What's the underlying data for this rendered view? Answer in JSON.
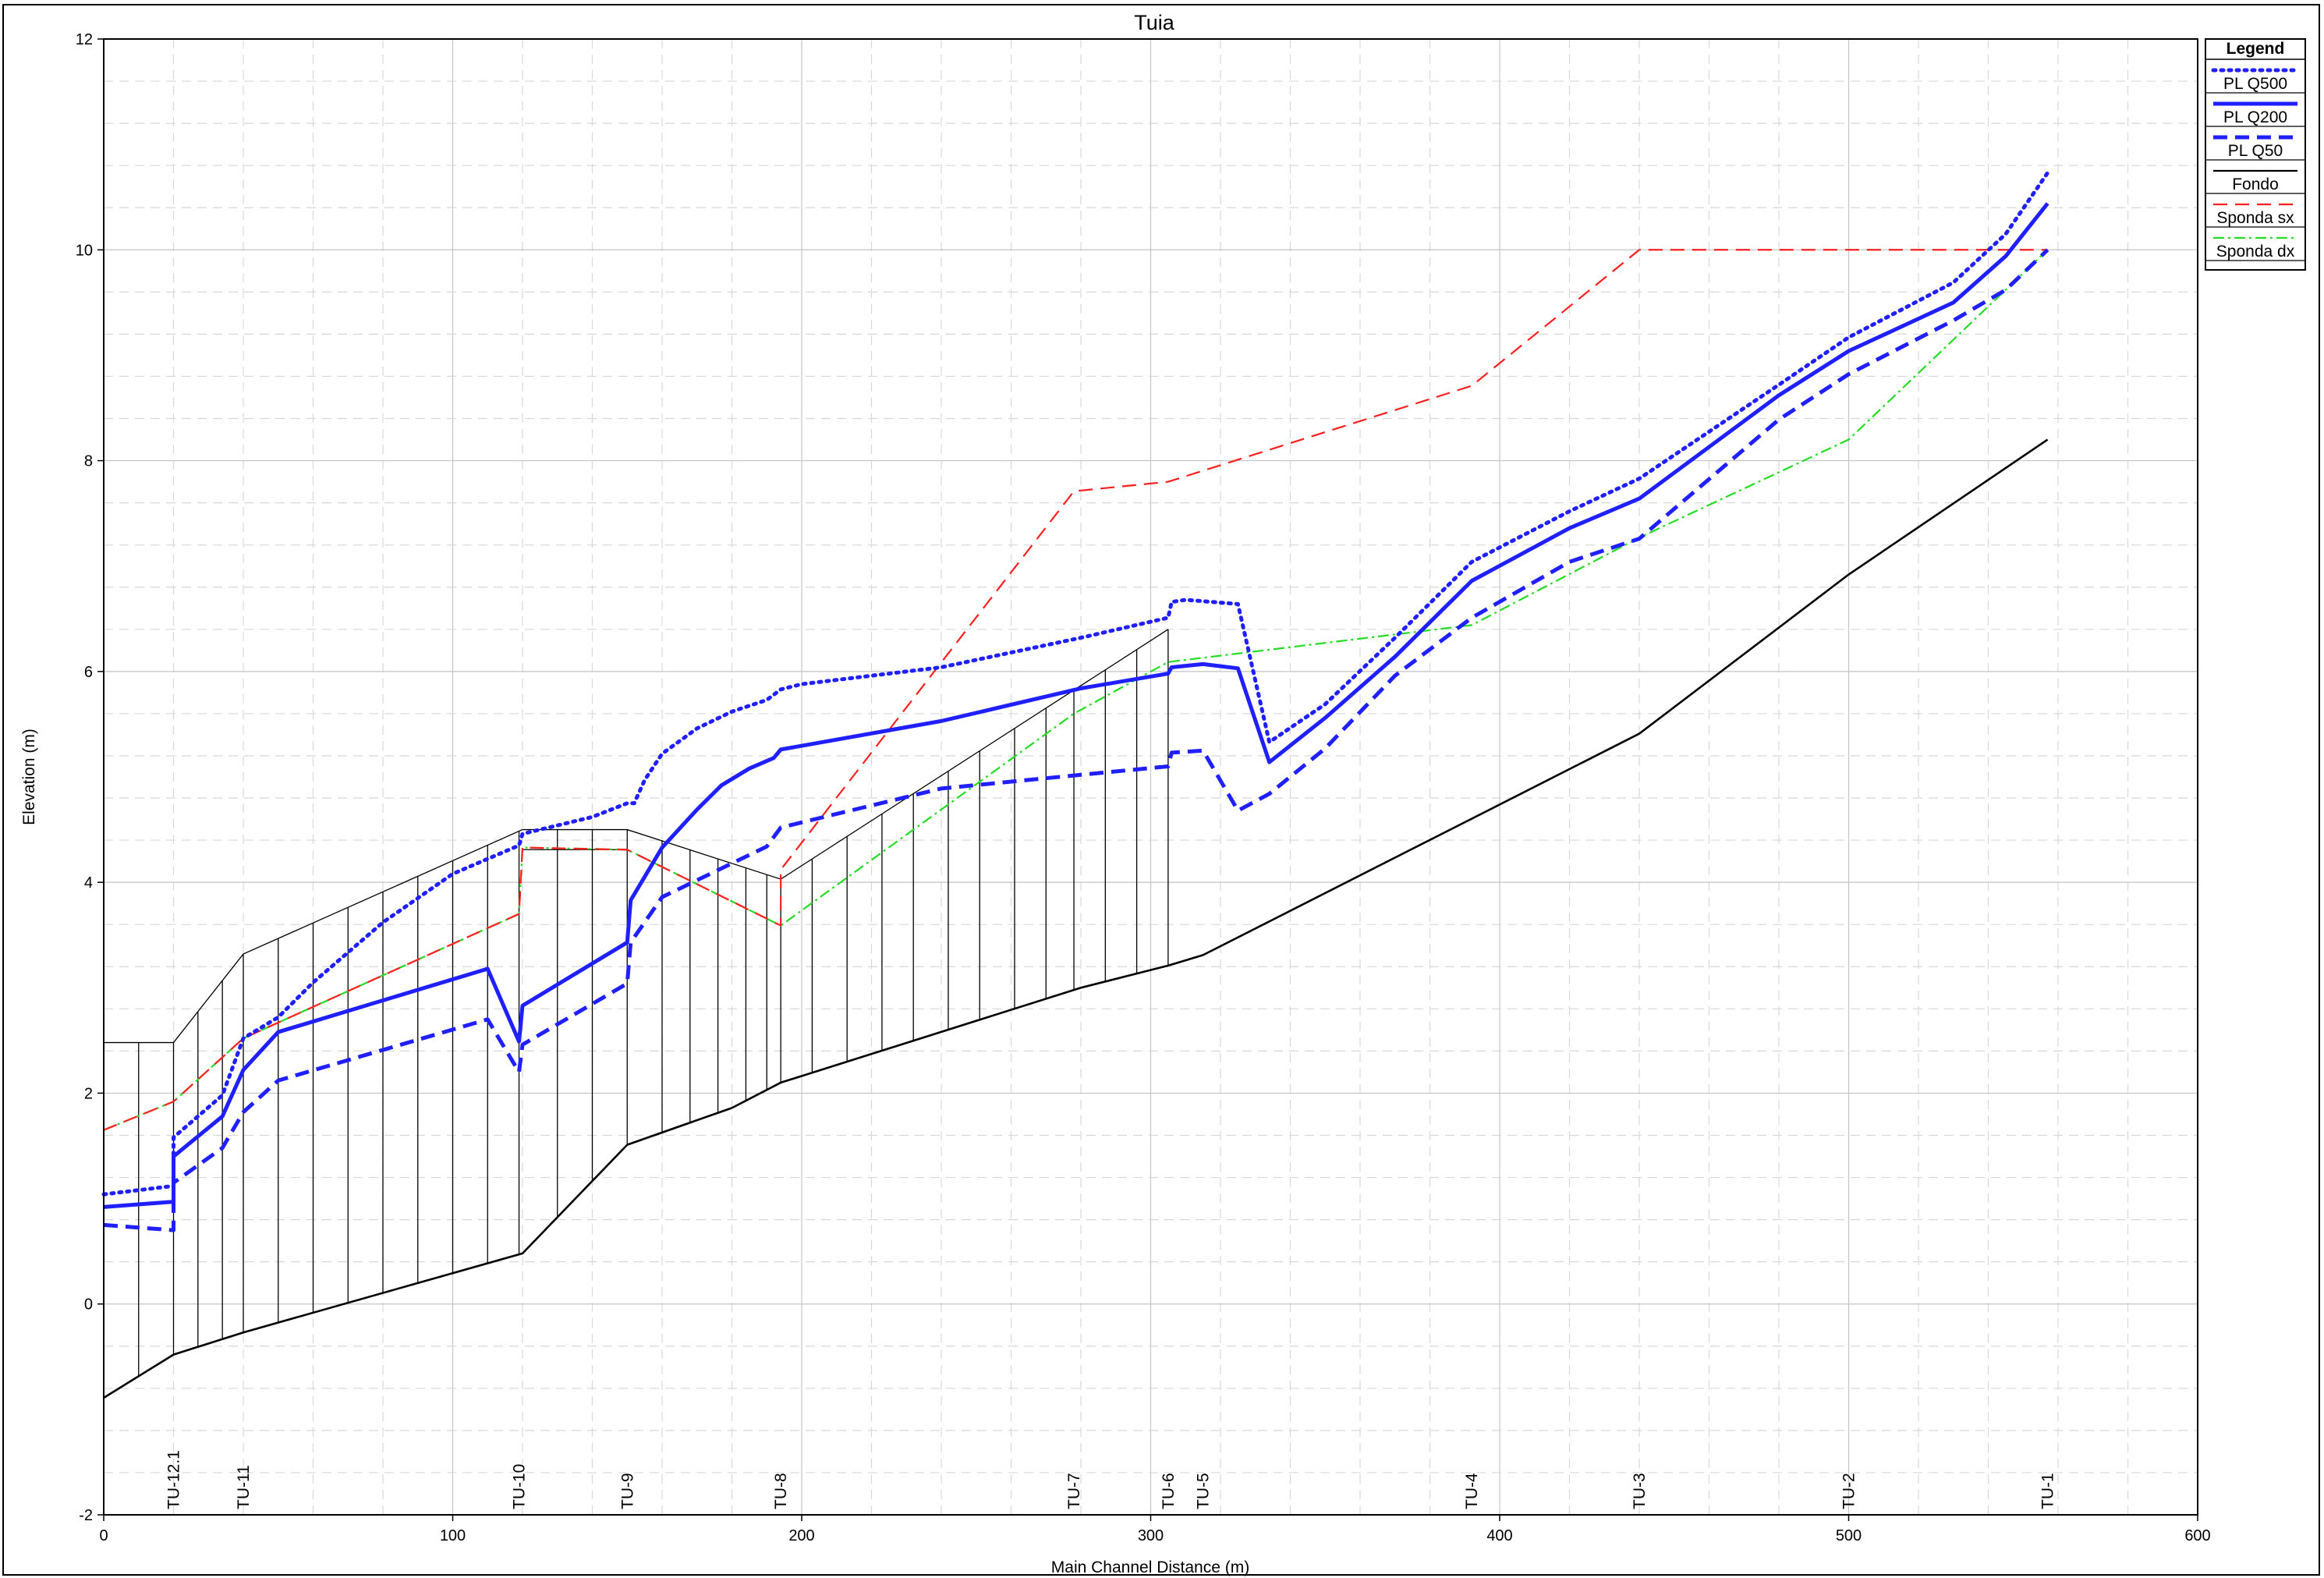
{
  "chart_data": {
    "type": "line",
    "title": "Tuia",
    "xlabel": "Main Channel Distance (m)",
    "ylabel": "Elevation (m)",
    "xlim": [
      0,
      600
    ],
    "ylim": [
      -2,
      12
    ],
    "xticks": [
      0,
      100,
      200,
      300,
      400,
      500,
      600
    ],
    "yticks": [
      -2,
      0,
      2,
      4,
      6,
      8,
      10,
      12
    ],
    "grid": true,
    "legend_title": "Legend",
    "legend_position": "top-right outside plot",
    "series": [
      {
        "name": "PL  Q500",
        "color": "#1f1fff",
        "dash": "dotted",
        "x": [
          0,
          20,
          20,
          34,
          40,
          50,
          60,
          80,
          100,
          119,
          120,
          140,
          150,
          152,
          155,
          160,
          170,
          180,
          190,
          194,
          200,
          240,
          280,
          305,
          306,
          310,
          325,
          334,
          350,
          370,
          392,
          420,
          440,
          480,
          500,
          530,
          545,
          557
        ],
        "y": [
          1.04,
          1.12,
          1.58,
          1.98,
          2.52,
          2.72,
          3.05,
          3.62,
          4.08,
          4.35,
          4.46,
          4.62,
          4.75,
          4.75,
          4.97,
          5.22,
          5.46,
          5.62,
          5.73,
          5.83,
          5.88,
          6.04,
          6.32,
          6.51,
          6.66,
          6.68,
          6.64,
          5.33,
          5.69,
          6.32,
          7.04,
          7.52,
          7.83,
          8.72,
          9.17,
          9.69,
          10.15,
          10.73
        ]
      },
      {
        "name": "PL  Q200",
        "color": "#1f1fff",
        "dash": "solid",
        "x": [
          0,
          20,
          20,
          34,
          40,
          50,
          110,
          119,
          120,
          150,
          151,
          160,
          170,
          177,
          185,
          192,
          194,
          240,
          280,
          305,
          306,
          315,
          325,
          334,
          350,
          370,
          392,
          420,
          440,
          480,
          500,
          530,
          545,
          557
        ],
        "y": [
          0.92,
          0.97,
          1.4,
          1.78,
          2.22,
          2.58,
          3.18,
          2.49,
          2.83,
          3.43,
          3.83,
          4.33,
          4.69,
          4.92,
          5.08,
          5.18,
          5.26,
          5.53,
          5.84,
          5.98,
          6.04,
          6.07,
          6.03,
          5.14,
          5.56,
          6.14,
          6.86,
          7.36,
          7.64,
          8.62,
          9.04,
          9.5,
          9.94,
          10.44
        ]
      },
      {
        "name": "PL  Q50",
        "color": "#1f1fff",
        "dash": "dashed",
        "x": [
          0,
          20,
          20,
          34,
          40,
          50,
          110,
          119,
          120,
          150,
          151,
          160,
          180,
          190,
          194,
          240,
          280,
          305,
          306,
          315,
          325,
          334,
          350,
          370,
          392,
          420,
          440,
          480,
          500,
          530,
          545,
          557
        ],
        "y": [
          0.75,
          0.7,
          1.15,
          1.48,
          1.82,
          2.12,
          2.7,
          2.2,
          2.46,
          3.04,
          3.43,
          3.86,
          4.18,
          4.34,
          4.52,
          4.89,
          5.02,
          5.1,
          5.23,
          5.25,
          4.68,
          4.84,
          5.27,
          5.96,
          6.51,
          7.04,
          7.26,
          8.39,
          8.82,
          9.33,
          9.62,
          10.0
        ]
      },
      {
        "name": "Fondo",
        "color": "#000000",
        "dash": "solid",
        "x": [
          0,
          20,
          40,
          120,
          150,
          180,
          194,
          280,
          305,
          315,
          440,
          500,
          557
        ],
        "y": [
          -0.89,
          -0.48,
          -0.27,
          0.48,
          1.51,
          1.86,
          2.1,
          3.0,
          3.21,
          3.31,
          5.41,
          6.92,
          8.2
        ]
      },
      {
        "name": "Sponda sx",
        "color": "#ff1f1f",
        "dash": "dashed",
        "x": [
          0,
          20,
          40,
          119,
          120,
          150,
          194,
          194,
          278,
          305,
          392,
          440,
          557
        ],
        "y": [
          1.65,
          1.92,
          2.52,
          3.7,
          4.33,
          4.31,
          3.59,
          4.12,
          7.71,
          7.8,
          8.71,
          10.0,
          10.0
        ]
      },
      {
        "name": "Sponda dx",
        "color": "#22dd22",
        "dash": "dashdot",
        "x": [
          0,
          20,
          40,
          119,
          120,
          150,
          194,
          278,
          305,
          392,
          440,
          500,
          557
        ],
        "y": [
          1.65,
          1.92,
          2.52,
          3.7,
          4.33,
          4.31,
          3.59,
          5.6,
          6.09,
          6.44,
          7.27,
          8.2,
          10.0
        ]
      }
    ],
    "terrain": {
      "name": "ground",
      "color": "#000000",
      "x": [
        0,
        20,
        40,
        120,
        150,
        194,
        305
      ],
      "y": [
        2.48,
        2.48,
        3.32,
        4.5,
        4.5,
        4.03,
        6.4
      ]
    },
    "stations": [
      {
        "label": "TU-12.1",
        "x": 20
      },
      {
        "label": "TU-11",
        "x": 40
      },
      {
        "label": "TU-10",
        "x": 119
      },
      {
        "label": "TU-9",
        "x": 150
      },
      {
        "label": "TU-8",
        "x": 194
      },
      {
        "label": "TU-7",
        "x": 278
      },
      {
        "label": "TU-6",
        "x": 305
      },
      {
        "label": "TU-5",
        "x": 315
      },
      {
        "label": "TU-4",
        "x": 392
      },
      {
        "label": "TU-3",
        "x": 440
      },
      {
        "label": "TU-2",
        "x": 500
      },
      {
        "label": "TU-1",
        "x": 557
      }
    ],
    "interpolated_section_x": [
      10,
      27,
      34,
      50,
      60,
      70,
      80,
      90,
      100,
      110,
      130,
      140,
      160,
      168,
      176,
      184,
      190,
      203,
      213,
      223,
      232,
      242,
      251,
      261,
      270,
      287,
      296
    ]
  }
}
